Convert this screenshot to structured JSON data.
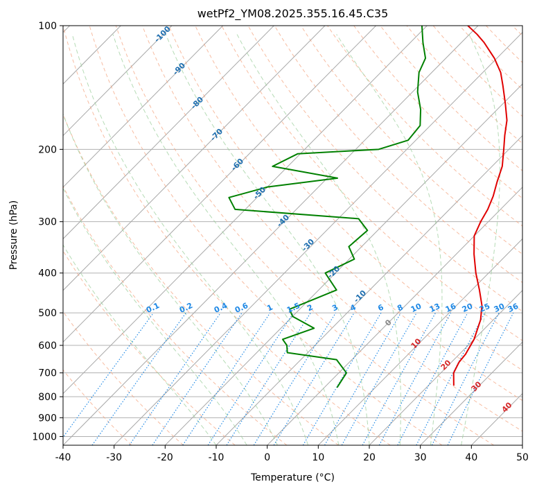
{
  "chart_data": {
    "type": "line",
    "chart_kind": "skew-t log-p diagram",
    "title": "wetPf2_YM08.2025.355.16.45.C35",
    "xlabel": "Temperature (°C)",
    "ylabel": "Pressure (hPa)",
    "xlim": [
      -40,
      50
    ],
    "ylim": [
      1050,
      100
    ],
    "y_scale": "log",
    "grid": true,
    "x_ticks": [
      -40,
      -30,
      -20,
      -10,
      0,
      10,
      20,
      30,
      40,
      50
    ],
    "y_ticks": [
      100,
      200,
      300,
      400,
      500,
      600,
      700,
      800,
      900,
      1000
    ],
    "colors": {
      "temperature": "#e00000",
      "dewpoint": "#008000",
      "isotherm_labels": "#1f6fb0",
      "mixing_ratio": "#1e88e5",
      "dry_adiabat": "#f4a582",
      "moist_adiabat": "#9ccf9c",
      "gray_label": "#888888",
      "red_label": "#d62728"
    },
    "skewed_isotherm_labels": [
      "-100",
      "-90",
      "-80",
      "-70",
      "-60",
      "-50",
      "-40",
      "-30",
      "-20",
      "-10"
    ],
    "mixing_ratio_labels": [
      "0.1",
      "0.2",
      "0.4",
      "0.6",
      "1",
      "1.5",
      "2",
      "3",
      "4",
      "6",
      "8",
      "10",
      "13",
      "16",
      "20",
      "25",
      "30",
      "36"
    ],
    "gray_labels": [
      "0"
    ],
    "red_labels": [
      "10",
      "20",
      "30",
      "40"
    ],
    "series": [
      {
        "key": "temperature",
        "points": [
          {
            "t": 25.0,
            "p": 752
          },
          {
            "t": 22.5,
            "p": 700
          },
          {
            "t": 21.5,
            "p": 660
          },
          {
            "t": 21.2,
            "p": 630
          },
          {
            "t": 20.0,
            "p": 580
          },
          {
            "t": 17.5,
            "p": 520
          },
          {
            "t": 15.0,
            "p": 480
          },
          {
            "t": 11.5,
            "p": 440
          },
          {
            "t": 7.5,
            "p": 400
          },
          {
            "t": 3.5,
            "p": 360
          },
          {
            "t": 0.0,
            "p": 325
          },
          {
            "t": -1.5,
            "p": 300
          },
          {
            "t": -2.5,
            "p": 280
          },
          {
            "t": -4.0,
            "p": 260
          },
          {
            "t": -6.0,
            "p": 240
          },
          {
            "t": -8.0,
            "p": 220
          },
          {
            "t": -11.0,
            "p": 200
          },
          {
            "t": -13.5,
            "p": 185
          },
          {
            "t": -16.0,
            "p": 170
          },
          {
            "t": -19.5,
            "p": 155
          },
          {
            "t": -23.5,
            "p": 140
          },
          {
            "t": -26.5,
            "p": 130
          },
          {
            "t": -30.5,
            "p": 120
          },
          {
            "t": -35.5,
            "p": 110
          },
          {
            "t": -38.5,
            "p": 105
          },
          {
            "t": -42.0,
            "p": 100
          }
        ]
      },
      {
        "key": "dewpoint",
        "points": [
          {
            "t": 2.5,
            "p": 760
          },
          {
            "t": 1.5,
            "p": 700
          },
          {
            "t": -3.0,
            "p": 650
          },
          {
            "t": -14.0,
            "p": 625
          },
          {
            "t": -15.5,
            "p": 600
          },
          {
            "t": -17.5,
            "p": 580
          },
          {
            "t": -13.5,
            "p": 545
          },
          {
            "t": -20.0,
            "p": 510
          },
          {
            "t": -22.0,
            "p": 490
          },
          {
            "t": -16.5,
            "p": 440
          },
          {
            "t": -22.0,
            "p": 400
          },
          {
            "t": -19.0,
            "p": 370
          },
          {
            "t": -22.5,
            "p": 345
          },
          {
            "t": -22.0,
            "p": 315
          },
          {
            "t": -26.0,
            "p": 295
          },
          {
            "t": -52.0,
            "p": 280
          },
          {
            "t": -55.5,
            "p": 262
          },
          {
            "t": -50.0,
            "p": 247
          },
          {
            "t": -38.0,
            "p": 235
          },
          {
            "t": -53.0,
            "p": 220
          },
          {
            "t": -50.5,
            "p": 205
          },
          {
            "t": -35.5,
            "p": 200
          },
          {
            "t": -31.5,
            "p": 190
          },
          {
            "t": -32.0,
            "p": 175
          },
          {
            "t": -35.0,
            "p": 160
          },
          {
            "t": -39.0,
            "p": 145
          },
          {
            "t": -42.5,
            "p": 130
          },
          {
            "t": -44.0,
            "p": 120
          },
          {
            "t": -47.5,
            "p": 110
          },
          {
            "t": -51.0,
            "p": 100
          }
        ]
      }
    ]
  }
}
